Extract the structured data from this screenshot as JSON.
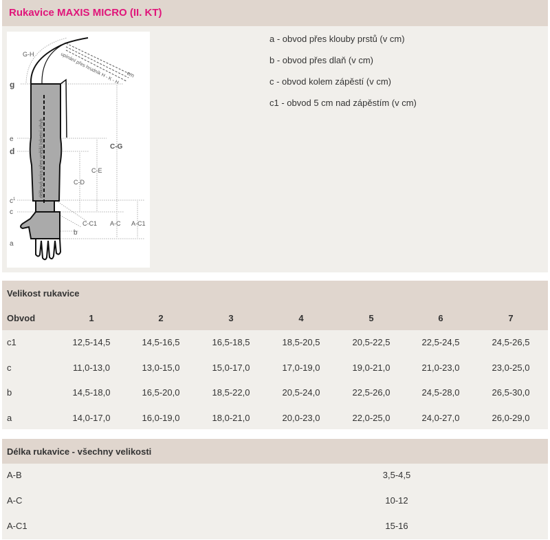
{
  "title": "Rukavice MAXIS MICRO (II. KT)",
  "diagram": {
    "labels": {
      "g": "g",
      "e": "e",
      "d": "d",
      "c1": "c",
      "c1_sup": "1",
      "c": "c",
      "a": "a",
      "b": "b",
      "gh": "G-H",
      "cg": "C-G",
      "ce": "C-E",
      "cd": "C-D",
      "cc1": "C-C1",
      "ac": "A-C",
      "ac1": "A-C1",
      "cm": "cm",
      "strap": "upínání přes hrudník H - K - H",
      "length": "délková míra přes vnější loketní ohyb"
    }
  },
  "legend": [
    "a - obvod přes klouby prstů (v cm)",
    "b - obvod přes dlaň (v cm)",
    "c - obvod kolem zápěstí (v cm)",
    "c1 - obvod 5 cm nad zápěstím (v cm)"
  ],
  "sizes": {
    "title": "Velikost rukavice",
    "row_header": "Obvod",
    "columns": [
      "1",
      "2",
      "3",
      "4",
      "5",
      "6",
      "7"
    ],
    "rows": [
      {
        "label": "c1",
        "values": [
          "12,5-14,5",
          "14,5-16,5",
          "16,5-18,5",
          "18,5-20,5",
          "20,5-22,5",
          "22,5-24,5",
          "24,5-26,5"
        ]
      },
      {
        "label": "c",
        "values": [
          "11,0-13,0",
          "13,0-15,0",
          "15,0-17,0",
          "17,0-19,0",
          "19,0-21,0",
          "21,0-23,0",
          "23,0-25,0"
        ]
      },
      {
        "label": "b",
        "values": [
          "14,5-18,0",
          "16,5-20,0",
          "18,5-22,0",
          "20,5-24,0",
          "22,5-26,0",
          "24,5-28,0",
          "26,5-30,0"
        ]
      },
      {
        "label": "a",
        "values": [
          "14,0-17,0",
          "16,0-19,0",
          "18,0-21,0",
          "20,0-23,0",
          "22,0-25,0",
          "24,0-27,0",
          "26,0-29,0"
        ]
      }
    ]
  },
  "lengths": {
    "title": "Délka rukavice - všechny velikosti",
    "rows": [
      {
        "label": "A-B",
        "value": "3,5-4,5"
      },
      {
        "label": "A-C",
        "value": "10-12"
      },
      {
        "label": "A-C1",
        "value": "15-16"
      }
    ]
  },
  "colors": {
    "title": "#e0157a",
    "band": "#e0d6ce",
    "panel": "#f1efeb"
  }
}
